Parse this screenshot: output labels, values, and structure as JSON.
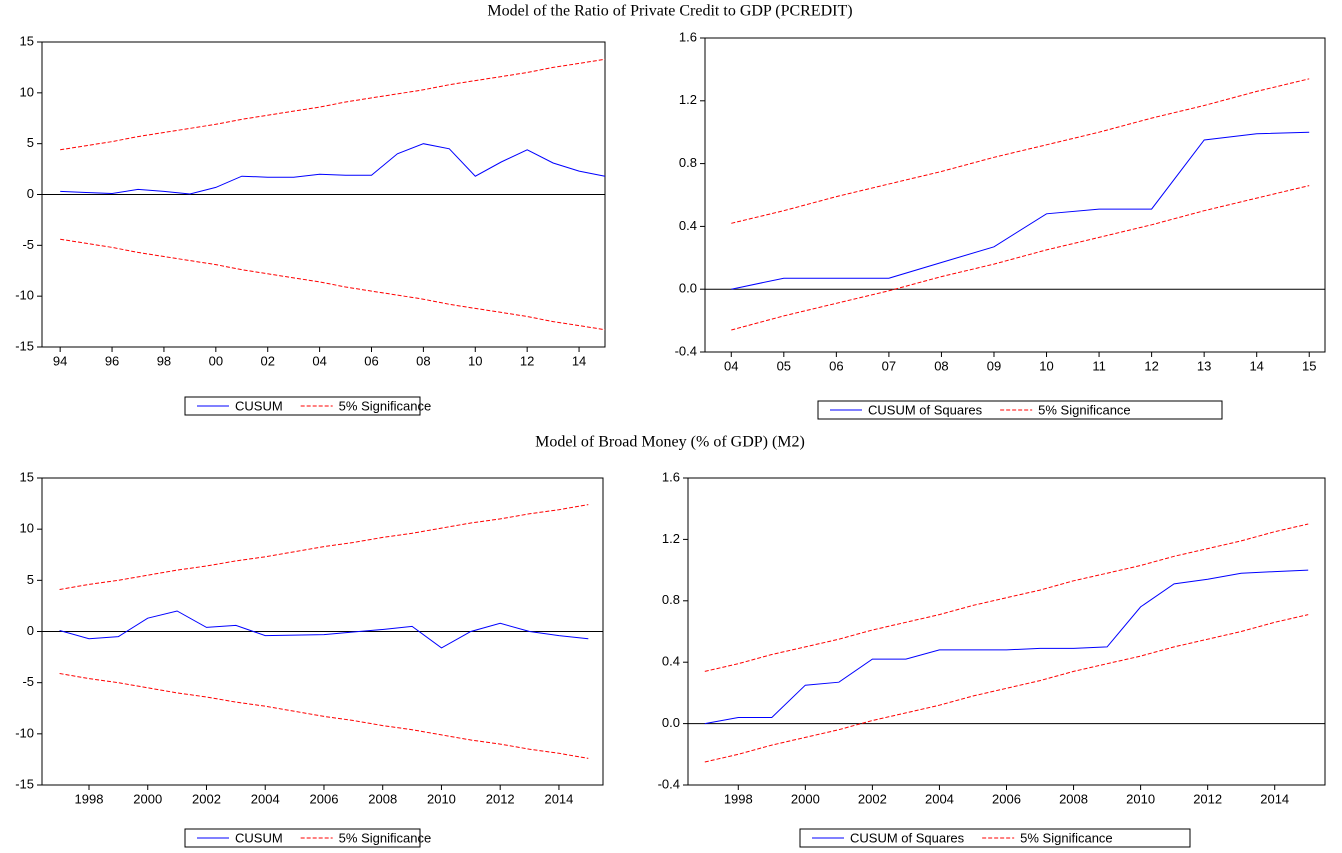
{
  "titles": [
    "Model of the Ratio of Private Credit to GDP (PCREDIT)",
    "Model of Broad Money (% of GDP) (M2)"
  ],
  "chart_data": [
    {
      "type": "line",
      "x": [
        1994,
        1995,
        1996,
        1997,
        1998,
        1999,
        2000,
        2001,
        2002,
        2003,
        2004,
        2005,
        2006,
        2007,
        2008,
        2009,
        2010,
        2011,
        2012,
        2013,
        2014,
        2015
      ],
      "xlim": [
        1993.3,
        2015
      ],
      "xticks": [
        {
          "value": 1994,
          "label": "94"
        },
        {
          "value": 1996,
          "label": "96"
        },
        {
          "value": 1998,
          "label": "98"
        },
        {
          "value": 2000,
          "label": "00"
        },
        {
          "value": 2002,
          "label": "02"
        },
        {
          "value": 2004,
          "label": "04"
        },
        {
          "value": 2006,
          "label": "06"
        },
        {
          "value": 2008,
          "label": "08"
        },
        {
          "value": 2010,
          "label": "10"
        },
        {
          "value": 2012,
          "label": "12"
        },
        {
          "value": 2014,
          "label": "14"
        }
      ],
      "ylim": [
        -15,
        15
      ],
      "yticks": [
        -15,
        -10,
        -5,
        0,
        5,
        10,
        15
      ],
      "legend": "below",
      "series": [
        {
          "name": "CUSUM",
          "color": "#0000ff",
          "style": "solid",
          "values": [
            0.3,
            0.2,
            0.1,
            0.5,
            0.3,
            0.05,
            0.7,
            1.8,
            1.7,
            1.7,
            2.0,
            1.9,
            1.9,
            4.0,
            5.0,
            4.5,
            1.8,
            3.2,
            4.4,
            3.1,
            2.3,
            1.8
          ]
        },
        {
          "name": "5% Significance",
          "color": "#ff0000",
          "style": "dashed",
          "values": [
            4.4,
            4.8,
            5.2,
            5.7,
            6.1,
            6.5,
            6.9,
            7.4,
            7.8,
            8.2,
            8.6,
            9.1,
            9.5,
            9.9,
            10.3,
            10.8,
            11.2,
            11.6,
            12.0,
            12.5,
            12.9,
            13.3
          ],
          "lower": [
            -4.4,
            -4.8,
            -5.2,
            -5.7,
            -6.1,
            -6.5,
            -6.9,
            -7.4,
            -7.8,
            -8.2,
            -8.6,
            -9.1,
            -9.5,
            -9.9,
            -10.3,
            -10.8,
            -11.2,
            -11.6,
            -12.0,
            -12.5,
            -12.9,
            -13.3
          ]
        }
      ]
    },
    {
      "type": "line",
      "x": [
        2004,
        2005,
        2006,
        2007,
        2008,
        2009,
        2010,
        2011,
        2012,
        2013,
        2014,
        2015
      ],
      "xlim": [
        2003.5,
        2015.3
      ],
      "xticks": [
        {
          "value": 2004,
          "label": "04"
        },
        {
          "value": 2005,
          "label": "05"
        },
        {
          "value": 2006,
          "label": "06"
        },
        {
          "value": 2007,
          "label": "07"
        },
        {
          "value": 2008,
          "label": "08"
        },
        {
          "value": 2009,
          "label": "09"
        },
        {
          "value": 2010,
          "label": "10"
        },
        {
          "value": 2011,
          "label": "11"
        },
        {
          "value": 2012,
          "label": "12"
        },
        {
          "value": 2013,
          "label": "13"
        },
        {
          "value": 2014,
          "label": "14"
        },
        {
          "value": 2015,
          "label": "15"
        }
      ],
      "ylim": [
        -0.4,
        1.6
      ],
      "yticks": [
        -0.4,
        {
          "value": 0,
          "label": "0.0"
        },
        0.4,
        0.8,
        1.2,
        1.6
      ],
      "legend": "below",
      "series": [
        {
          "name": "CUSUM of Squares",
          "color": "#0000ff",
          "style": "solid",
          "values": [
            0.0,
            0.07,
            0.07,
            0.07,
            0.17,
            0.27,
            0.48,
            0.51,
            0.51,
            0.95,
            0.99,
            1.0
          ]
        },
        {
          "name": "5% Significance",
          "color": "#ff0000",
          "style": "dashed",
          "values": [
            0.42,
            0.5,
            0.59,
            0.67,
            0.75,
            0.84,
            0.92,
            1.0,
            1.09,
            1.17,
            1.26,
            1.34
          ],
          "lower": [
            -0.26,
            -0.17,
            -0.09,
            -0.01,
            0.08,
            0.16,
            0.25,
            0.33,
            0.41,
            0.5,
            0.58,
            0.66
          ]
        }
      ]
    },
    {
      "type": "line",
      "x": [
        1997,
        1998,
        1999,
        2000,
        2001,
        2002,
        2003,
        2004,
        2005,
        2006,
        2007,
        2008,
        2009,
        2010,
        2011,
        2012,
        2013,
        2014,
        2015
      ],
      "xlim": [
        1996.4,
        2015.5
      ],
      "xticks": [
        1998,
        2000,
        2002,
        2004,
        2006,
        2008,
        2010,
        2012,
        2014
      ],
      "ylim": [
        -15,
        15
      ],
      "yticks": [
        -15,
        -10,
        -5,
        0,
        5,
        10,
        15
      ],
      "legend": "below",
      "series": [
        {
          "name": "CUSUM",
          "color": "#0000ff",
          "style": "solid",
          "values": [
            0.1,
            -0.7,
            -0.5,
            1.3,
            2.0,
            0.4,
            0.6,
            -0.4,
            -0.35,
            -0.3,
            -0.05,
            0.2,
            0.5,
            -1.6,
            0.0,
            0.8,
            0.0,
            -0.4,
            -0.7
          ]
        },
        {
          "name": "5% Significance",
          "color": "#ff0000",
          "style": "dashed",
          "values": [
            4.1,
            4.6,
            5.0,
            5.5,
            6.0,
            6.4,
            6.9,
            7.3,
            7.8,
            8.3,
            8.7,
            9.2,
            9.6,
            10.1,
            10.6,
            11.0,
            11.5,
            11.9,
            12.4
          ],
          "lower": [
            -4.1,
            -4.6,
            -5.0,
            -5.5,
            -6.0,
            -6.4,
            -6.9,
            -7.3,
            -7.8,
            -8.3,
            -8.7,
            -9.2,
            -9.6,
            -10.1,
            -10.6,
            -11.0,
            -11.5,
            -11.9,
            -12.4
          ]
        }
      ]
    },
    {
      "type": "line",
      "x": [
        1997,
        1998,
        1999,
        2000,
        2001,
        2002,
        2003,
        2004,
        2005,
        2006,
        2007,
        2008,
        2009,
        2010,
        2011,
        2012,
        2013,
        2014,
        2015
      ],
      "xlim": [
        1996.5,
        2015.5
      ],
      "xticks": [
        1998,
        2000,
        2002,
        2004,
        2006,
        2008,
        2010,
        2012,
        2014
      ],
      "ylim": [
        -0.4,
        1.6
      ],
      "yticks": [
        -0.4,
        {
          "value": 0,
          "label": "0.0"
        },
        0.4,
        0.8,
        1.2,
        1.6
      ],
      "legend": "below",
      "series": [
        {
          "name": "CUSUM of Squares",
          "color": "#0000ff",
          "style": "solid",
          "values": [
            0.0,
            0.04,
            0.04,
            0.25,
            0.27,
            0.42,
            0.42,
            0.48,
            0.48,
            0.48,
            0.49,
            0.49,
            0.5,
            0.76,
            0.91,
            0.94,
            0.98,
            0.99,
            1.0
          ]
        },
        {
          "name": "5% Significance",
          "color": "#ff0000",
          "style": "dashed",
          "values": [
            0.34,
            0.39,
            0.45,
            0.5,
            0.55,
            0.61,
            0.66,
            0.71,
            0.77,
            0.82,
            0.87,
            0.93,
            0.98,
            1.03,
            1.09,
            1.14,
            1.19,
            1.25,
            1.3
          ],
          "lower": [
            -0.25,
            -0.2,
            -0.14,
            -0.09,
            -0.04,
            0.02,
            0.07,
            0.12,
            0.18,
            0.23,
            0.28,
            0.34,
            0.39,
            0.44,
            0.5,
            0.55,
            0.6,
            0.66,
            0.71
          ]
        }
      ]
    }
  ]
}
